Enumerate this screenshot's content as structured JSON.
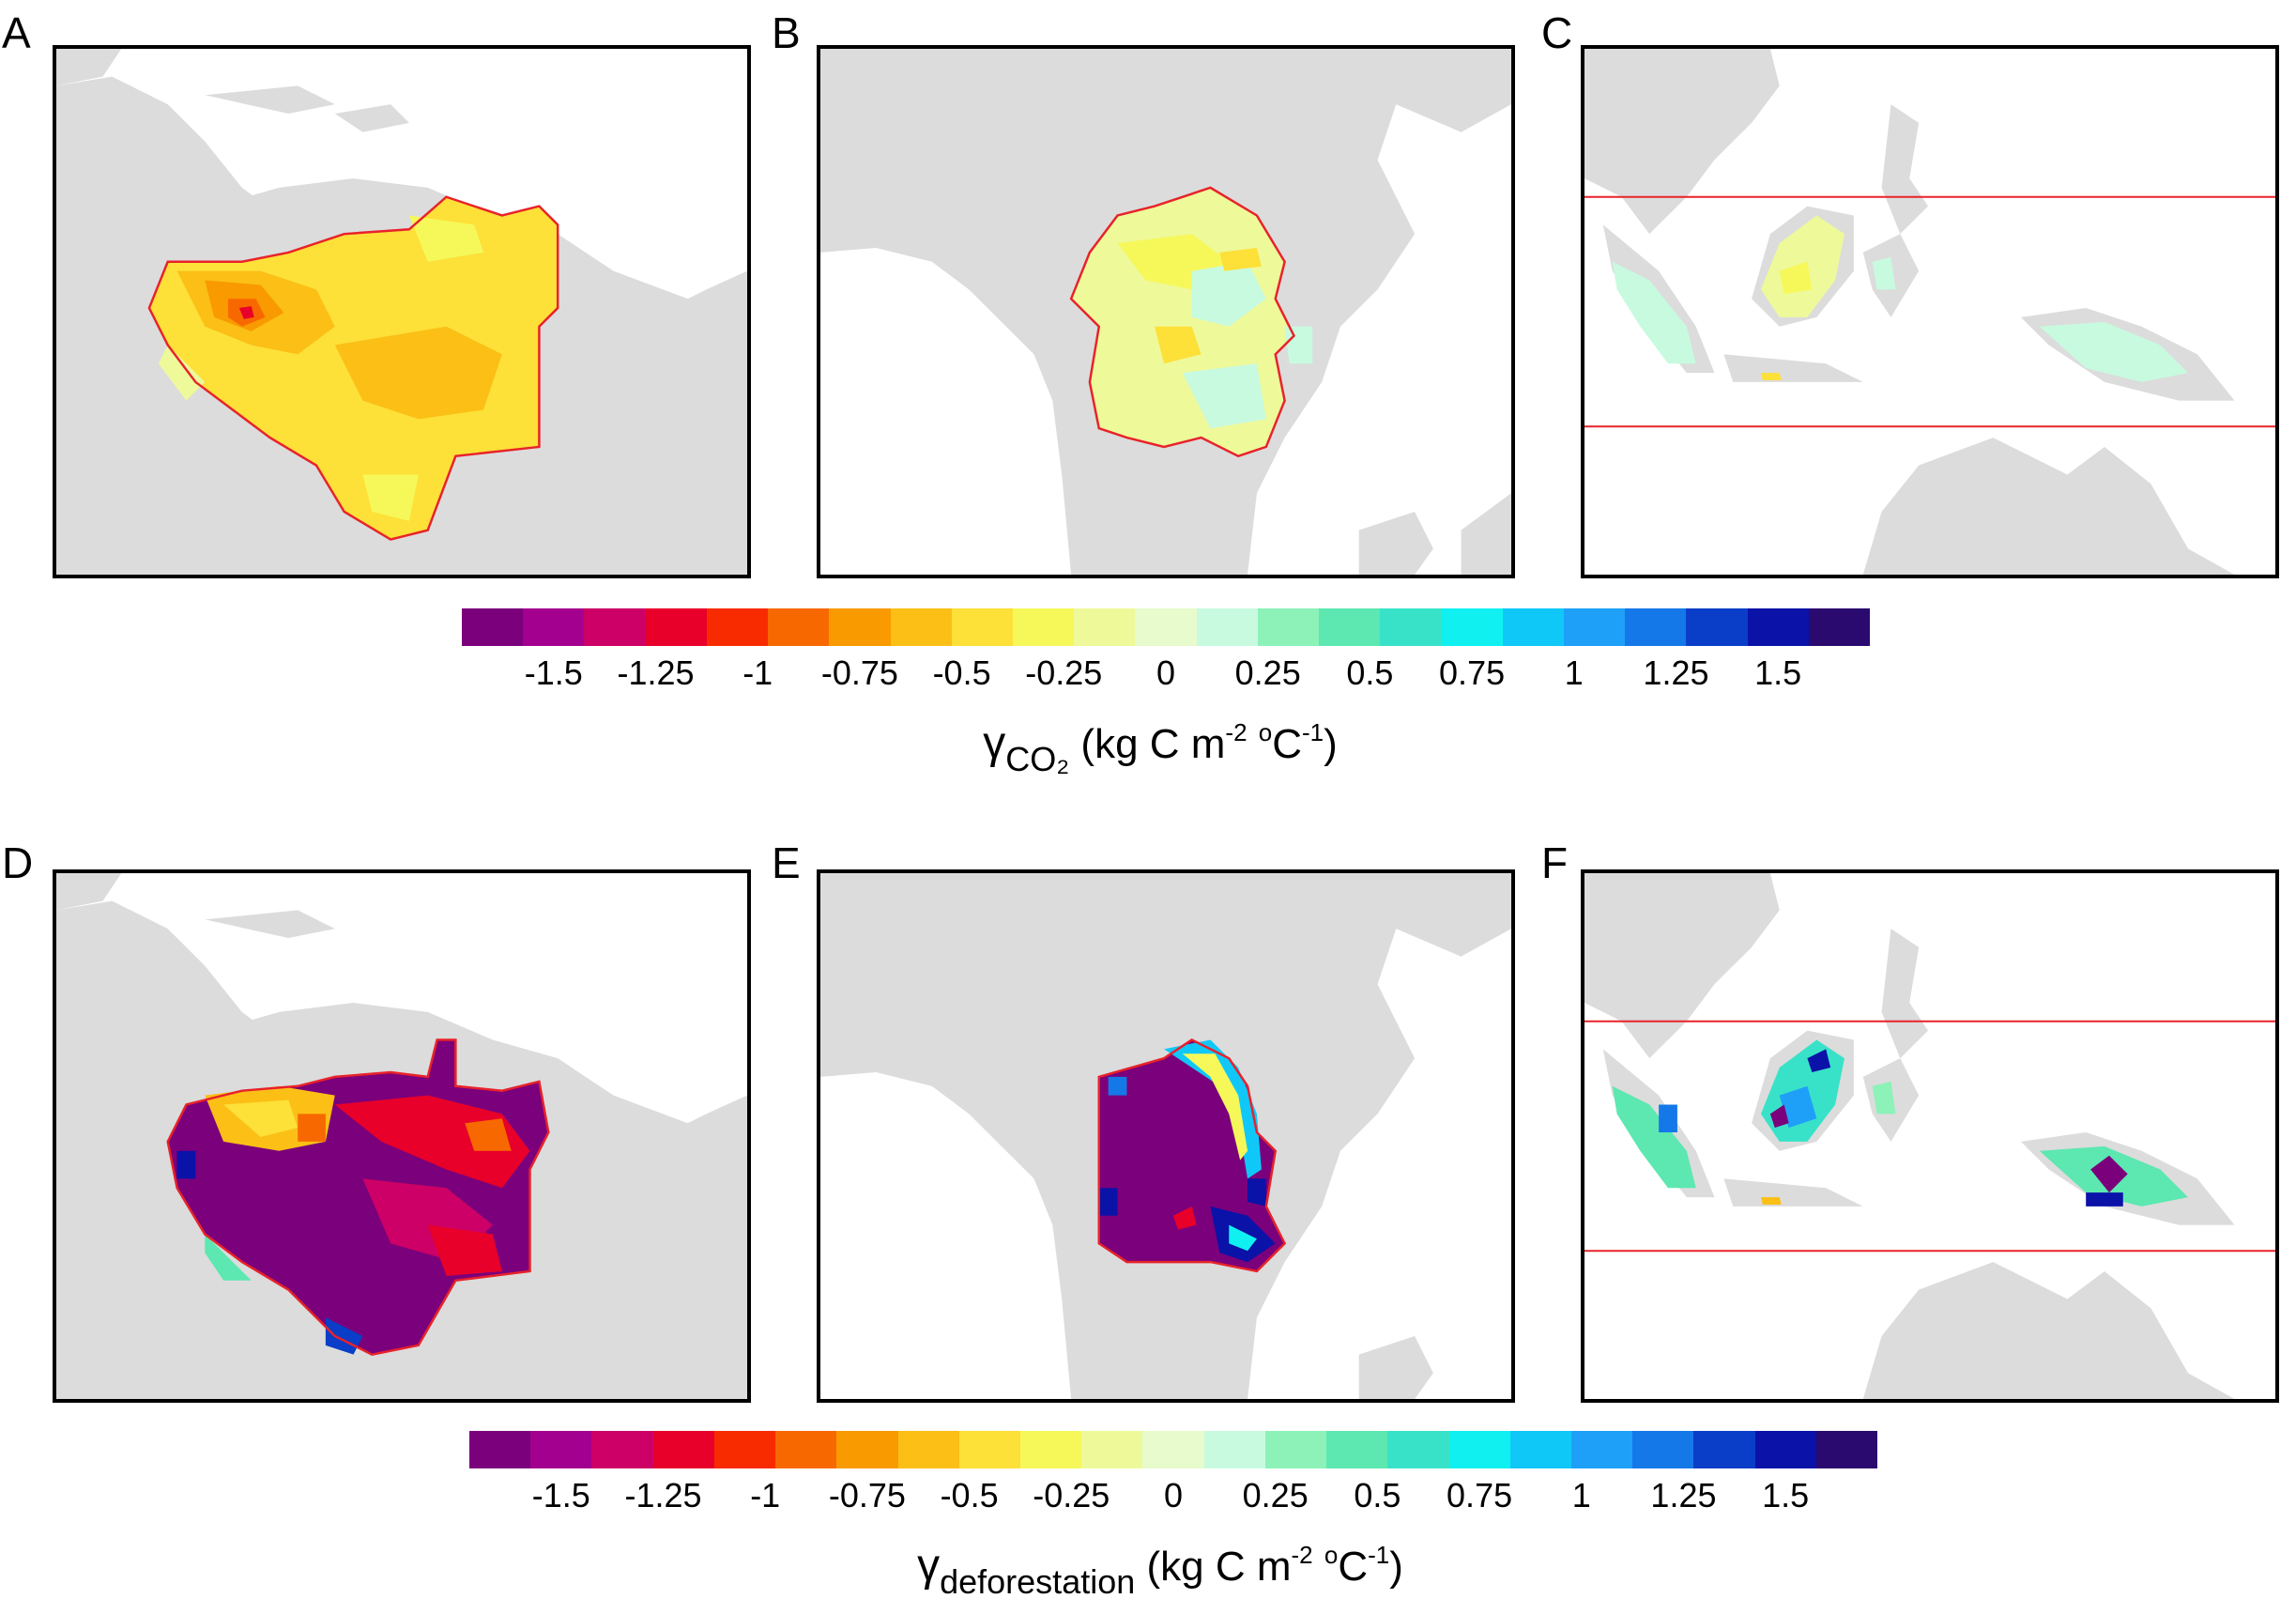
{
  "panels": [
    {
      "letter": "A",
      "region": "amazon",
      "variable": "co2"
    },
    {
      "letter": "B",
      "region": "congo",
      "variable": "co2"
    },
    {
      "letter": "C",
      "region": "southeast-asia",
      "variable": "co2"
    },
    {
      "letter": "D",
      "region": "amazon",
      "variable": "deforestation"
    },
    {
      "letter": "E",
      "region": "congo",
      "variable": "deforestation"
    },
    {
      "letter": "F",
      "region": "southeast-asia",
      "variable": "deforestation"
    }
  ],
  "colorbar": {
    "colors": [
      "#7b007b",
      "#a3008f",
      "#cc0066",
      "#e8002a",
      "#f82b00",
      "#f86800",
      "#f89a00",
      "#fbbf16",
      "#fde038",
      "#f6f85a",
      "#eef99a",
      "#e8fbcc",
      "#c8fae0",
      "#8cf2b8",
      "#5ce8b0",
      "#38e2c8",
      "#10f0f0",
      "#10c8f8",
      "#1ea0f8",
      "#1478e8",
      "#0a3ec8",
      "#0a12a8",
      "#2a0a6e"
    ],
    "ticks": [
      "-1.5",
      "-1.25",
      "-1",
      "-0.75",
      "-0.5",
      "-0.25",
      "0",
      "0.25",
      "0.5",
      "0.75",
      "1",
      "1.25",
      "1.5"
    ],
    "tick_values": [
      -1.5,
      -1.25,
      -1,
      -0.75,
      -0.5,
      -0.25,
      0,
      0.25,
      0.5,
      0.75,
      1,
      1.25,
      1.5
    ],
    "range": [
      -1.725,
      1.725
    ]
  },
  "colorbar_top": {
    "symbol": "γ",
    "subscript": "CO₂",
    "units": "(kg C m",
    "exp1": "-2",
    "mid": " ",
    "exp2": "o",
    "unit2": "C",
    "exp3": "-1",
    "close": ")"
  },
  "colorbar_bottom": {
    "symbol": "γ",
    "subscript": "deforestation",
    "units": "(kg C m",
    "exp1": "-2",
    "mid": " ",
    "exp2": "o",
    "unit2": "C",
    "exp3": "-1",
    "close": ")"
  },
  "colors": {
    "land": "#dcdcdc",
    "boundary": "#e8222a",
    "frame": "#000000"
  }
}
